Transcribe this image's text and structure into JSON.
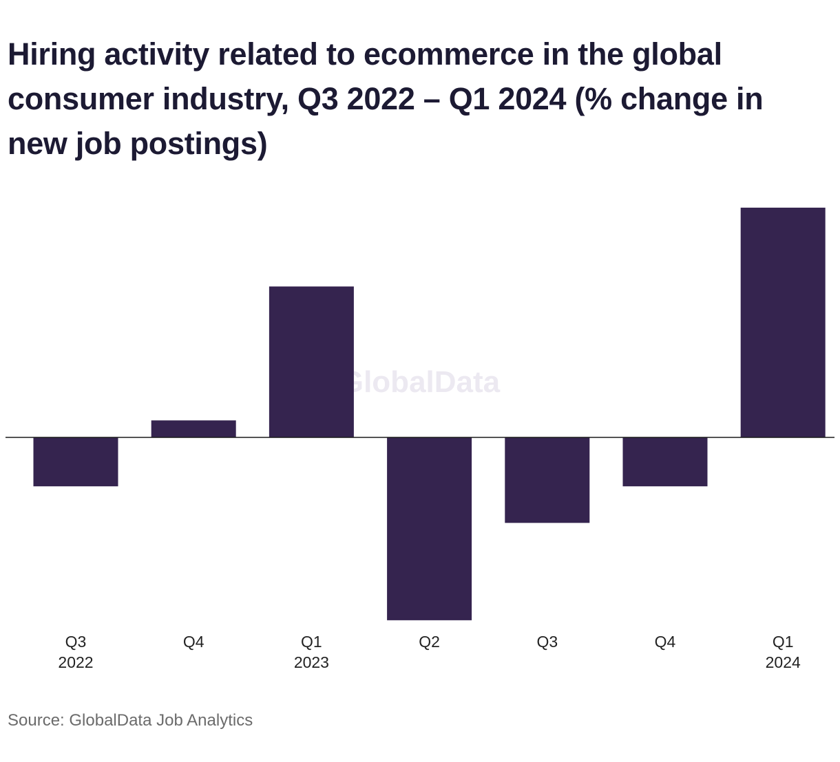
{
  "chart_data": {
    "type": "bar",
    "title": "Hiring activity related to ecommerce in the global consumer industry, Q3 2022 – Q1 2024 (% change in new job postings)",
    "categories": [
      {
        "quarter": "Q3",
        "year": "2022"
      },
      {
        "quarter": "Q4",
        "year": ""
      },
      {
        "quarter": "Q1",
        "year": "2023"
      },
      {
        "quarter": "Q2",
        "year": ""
      },
      {
        "quarter": "Q3",
        "year": ""
      },
      {
        "quarter": "Q4",
        "year": ""
      },
      {
        "quarter": "Q1",
        "year": "2024"
      }
    ],
    "values": [
      -9.5,
      3.3,
      29.3,
      -35.5,
      -16.6,
      -9.5,
      44.6
    ],
    "ylim": [
      -40,
      50
    ],
    "xlabel": "",
    "ylabel": "",
    "grid": false,
    "bar_color": "#35244f",
    "axis_color": "#1a1a1a",
    "watermark": "GlobalData"
  },
  "source": "Source: GlobalData Job Analytics"
}
